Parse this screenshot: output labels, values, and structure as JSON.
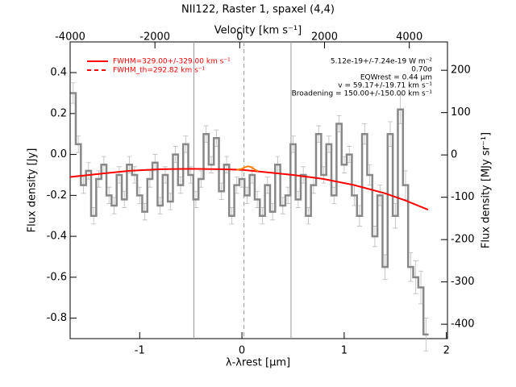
{
  "chart_data": {
    "type": "spectrum",
    "title": "NII122, Raster 1, spaxel (4,4)",
    "xlabel": "λ-λrest [μm]",
    "ylabel": "Flux density [Jy]",
    "x2label": "Velocity [km s⁻¹]",
    "y2label": "Flux density [MJy sr⁻¹]",
    "xlim": [
      -1.68,
      2.01
    ],
    "xticks": [
      -1,
      0,
      1,
      2
    ],
    "ylim": [
      -0.9,
      0.55
    ],
    "yticks": [
      {
        "value": -0.8,
        "label": "-0.8"
      },
      -0.6,
      -0.4,
      -0.2,
      {
        "value": 0,
        "label": "0.0"
      },
      0.2,
      0.4
    ],
    "x2lim": [
      -4000,
      4900
    ],
    "x2ticks": [
      -4000,
      -2000,
      0,
      2000,
      4000
    ],
    "y2lim": [
      -434,
      267
    ],
    "y2ticks": [
      -400,
      -300,
      -200,
      -100,
      0,
      100,
      200
    ],
    "x": [
      -1.65,
      -1.6,
      -1.55,
      -1.5,
      -1.45,
      -1.4,
      -1.35,
      -1.3,
      -1.25,
      -1.2,
      -1.15,
      -1.1,
      -1.05,
      -1.0,
      -0.95,
      -0.9,
      -0.85,
      -0.8,
      -0.75,
      -0.7,
      -0.65,
      -0.6,
      -0.55,
      -0.5,
      -0.45,
      -0.4,
      -0.35,
      -0.3,
      -0.25,
      -0.2,
      -0.15,
      -0.1,
      -0.05,
      0.0,
      0.05,
      0.1,
      0.15,
      0.2,
      0.25,
      0.3,
      0.35,
      0.4,
      0.45,
      0.5,
      0.55,
      0.6,
      0.65,
      0.7,
      0.75,
      0.8,
      0.85,
      0.9,
      0.95,
      1.0,
      1.05,
      1.1,
      1.15,
      1.2,
      1.25,
      1.3,
      1.35,
      1.4,
      1.45,
      1.5,
      1.55,
      1.6,
      1.65,
      1.7,
      1.75,
      1.8
    ],
    "series": [
      {
        "color": "#888888",
        "values": [
          0.3,
          0.05,
          -0.15,
          -0.08,
          -0.3,
          -0.12,
          -0.05,
          -0.2,
          -0.25,
          -0.1,
          -0.22,
          -0.05,
          -0.1,
          -0.2,
          -0.28,
          -0.12,
          -0.04,
          -0.25,
          -0.1,
          -0.23,
          0.0,
          -0.15,
          0.05,
          -0.1,
          -0.22,
          -0.12,
          0.1,
          -0.05,
          0.08,
          -0.18,
          -0.05,
          -0.3,
          -0.15,
          -0.12,
          -0.2,
          -0.1,
          -0.22,
          -0.3,
          -0.15,
          -0.28,
          -0.05,
          -0.25,
          -0.2,
          0.05,
          -0.22,
          -0.1,
          -0.3,
          -0.15,
          0.1,
          -0.1,
          0.05,
          -0.2,
          0.15,
          -0.05,
          0.0,
          -0.2,
          -0.3,
          0.1,
          -0.1,
          -0.4,
          -0.2,
          -0.55,
          0.1,
          -0.3,
          0.22,
          -0.15,
          -0.55,
          -0.6,
          -0.65,
          -0.88
        ],
        "errors": [
          0.05,
          0.04,
          0.04,
          0.04,
          0.04,
          0.04,
          0.04,
          0.04,
          0.04,
          0.04,
          0.04,
          0.04,
          0.04,
          0.04,
          0.04,
          0.04,
          0.04,
          0.04,
          0.04,
          0.04,
          0.04,
          0.04,
          0.04,
          0.04,
          0.04,
          0.04,
          0.04,
          0.04,
          0.04,
          0.04,
          0.04,
          0.04,
          0.04,
          0.04,
          0.04,
          0.04,
          0.04,
          0.04,
          0.04,
          0.04,
          0.04,
          0.04,
          0.04,
          0.04,
          0.04,
          0.04,
          0.04,
          0.04,
          0.04,
          0.04,
          0.04,
          0.04,
          0.04,
          0.04,
          0.04,
          0.05,
          0.05,
          0.05,
          0.05,
          0.05,
          0.05,
          0.06,
          0.06,
          0.06,
          0.07,
          0.07,
          0.07,
          0.08,
          0.08,
          0.08
        ]
      }
    ],
    "fit": {
      "color": "#ff0000",
      "x": [
        -1.68,
        -1.4,
        -1.1,
        -0.8,
        -0.5,
        -0.2,
        0.0,
        0.2,
        0.5,
        0.8,
        1.1,
        1.4,
        1.6,
        1.82
      ],
      "values": [
        -0.11,
        -0.095,
        -0.08,
        -0.072,
        -0.07,
        -0.072,
        -0.075,
        -0.085,
        -0.1,
        -0.12,
        -0.15,
        -0.19,
        -0.225,
        -0.27
      ]
    },
    "component": {
      "color": "#ff8000",
      "x": [
        -0.05,
        0.0,
        0.03,
        0.06,
        0.09,
        0.12,
        0.16
      ],
      "values": [
        -0.075,
        -0.07,
        -0.062,
        -0.058,
        -0.062,
        -0.072,
        -0.082
      ]
    },
    "vlines": [
      {
        "value": -0.47,
        "style": "solid"
      },
      {
        "value": 0.02,
        "style": "dashed"
      },
      {
        "value": 0.48,
        "style": "solid"
      }
    ],
    "legend": [
      {
        "name": "FWHM=329.00+/-329.00 km s⁻¹",
        "style": "solid"
      },
      {
        "name": "FWHM_th=292.82 km s⁻¹",
        "style": "dashed"
      }
    ],
    "annotations": [
      "5.12e-19+/-7.24e-19 W m⁻²",
      "0.70σ",
      "EQWrest = 0.44 μm",
      "v = 59.17+/-19.71 km s⁻¹",
      "Broadening = 150.00+/-150.00 km s⁻¹"
    ]
  }
}
